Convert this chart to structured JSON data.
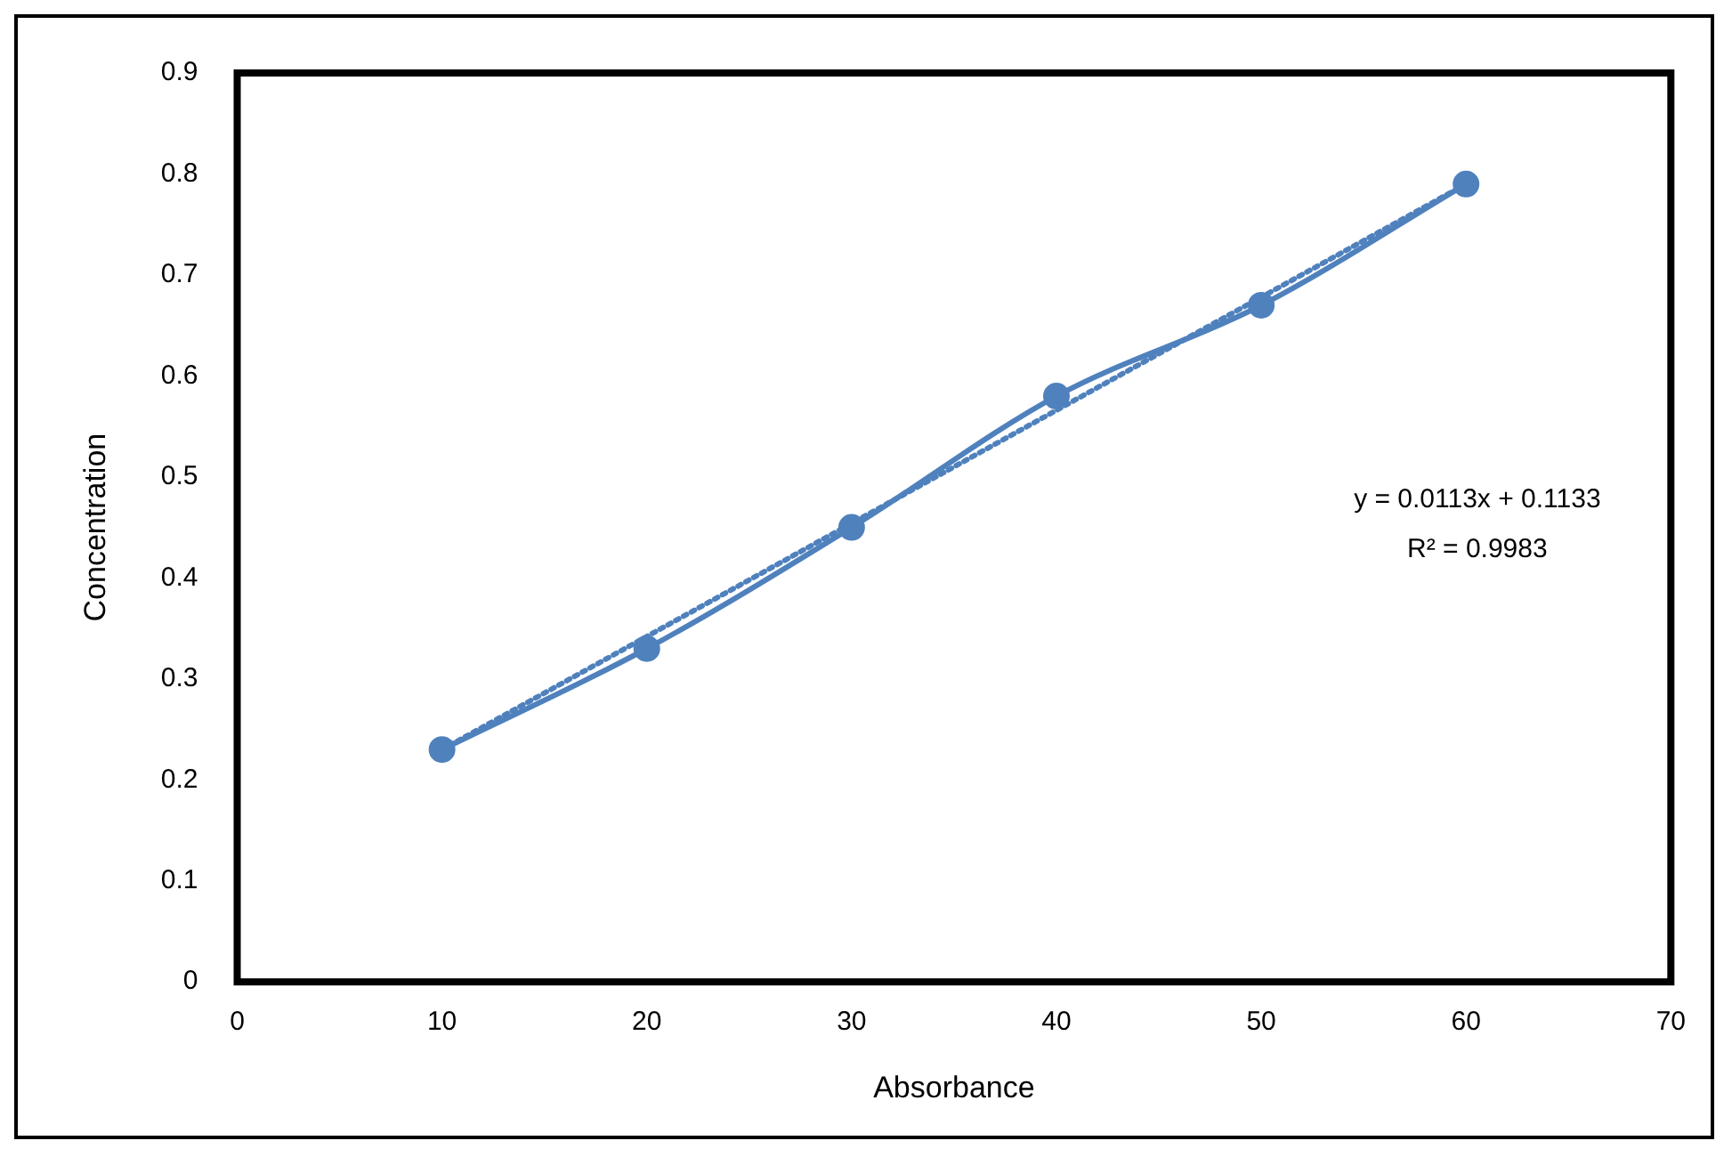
{
  "chart_data": {
    "type": "line",
    "xlabel": "Absorbance",
    "ylabel": "Concentration",
    "xlim": [
      0,
      70
    ],
    "xticks": [
      0,
      10,
      20,
      30,
      40,
      50,
      60,
      70
    ],
    "ylim": [
      0,
      0.9
    ],
    "yticks": [
      0,
      0.1,
      0.2,
      0.3,
      0.4,
      0.5,
      0.6,
      0.7,
      0.8,
      0.9
    ],
    "grid": false,
    "legend": false,
    "series": [
      {
        "color": "#4f81bd",
        "marker": "circle",
        "line_style": "solid",
        "x": [
          10,
          20,
          30,
          40,
          50,
          60
        ],
        "values": [
          0.23,
          0.33,
          0.45,
          0.58,
          0.67,
          0.79
        ]
      },
      {
        "color": "#4f81bd",
        "marker": "none",
        "line_style": "dotted",
        "x": [
          10,
          60
        ],
        "values": [
          0.23,
          0.79
        ]
      }
    ],
    "annotations": [
      "y = 0.0113x + 0.1133",
      "R² = 0.9983"
    ]
  }
}
